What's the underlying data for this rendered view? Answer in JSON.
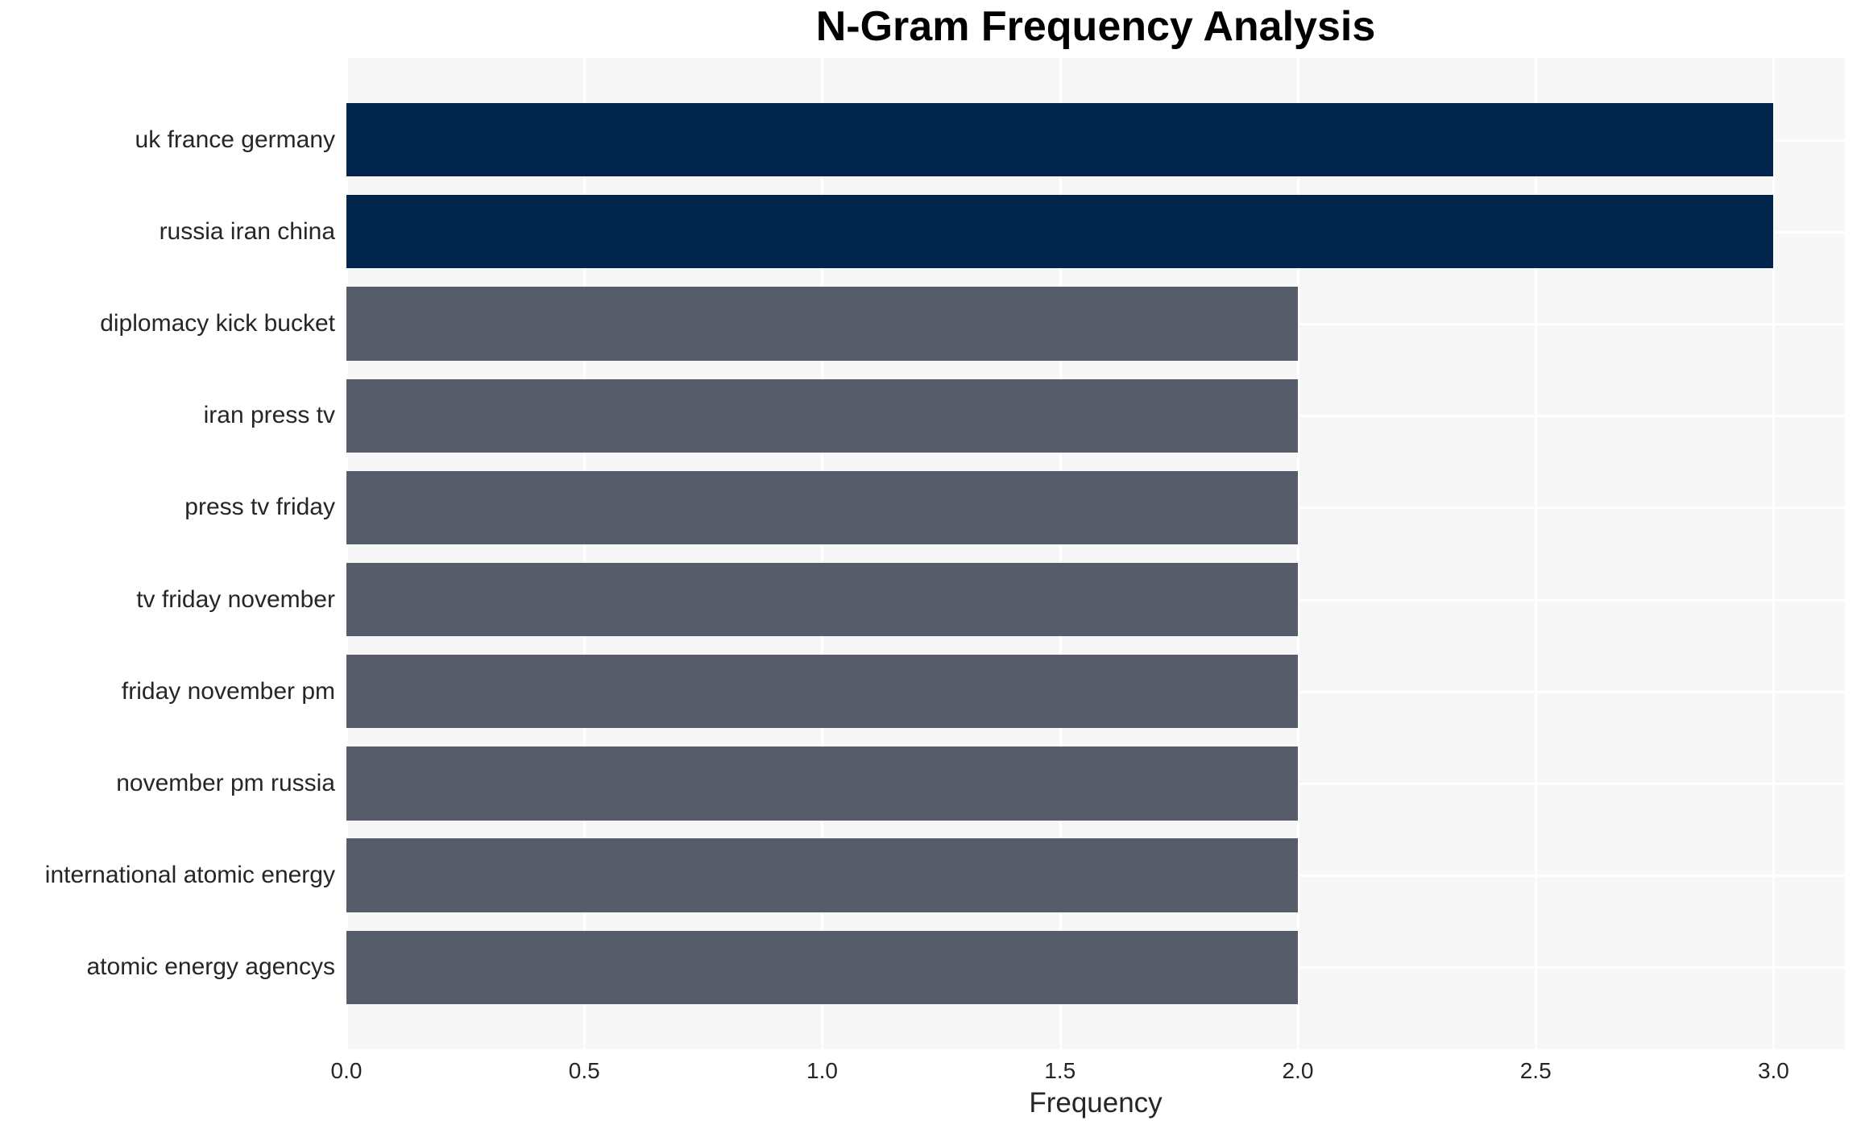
{
  "chart_data": {
    "type": "bar",
    "orientation": "horizontal",
    "title": "N-Gram Frequency Analysis",
    "xlabel": "Frequency",
    "ylabel": "",
    "categories": [
      "uk france germany",
      "russia iran china",
      "diplomacy kick bucket",
      "iran press tv",
      "press tv friday",
      "tv friday november",
      "friday november pm",
      "november pm russia",
      "international atomic energy",
      "atomic energy agencys"
    ],
    "values": [
      3,
      3,
      2,
      2,
      2,
      2,
      2,
      2,
      2,
      2
    ],
    "bar_colors": [
      "#02254d",
      "#02254d",
      "#565c6a",
      "#565c6a",
      "#565c6a",
      "#565c6a",
      "#565c6a",
      "#565c6a",
      "#565c6a",
      "#565c6a"
    ],
    "xticks": [
      "0.0",
      "0.5",
      "1.0",
      "1.5",
      "2.0",
      "2.5",
      "3.0"
    ],
    "xtick_values": [
      0,
      0.5,
      1.0,
      1.5,
      2.0,
      2.5,
      3.0
    ],
    "xlim": [
      0,
      3.15
    ],
    "grid": true,
    "legend": "none",
    "colors": {
      "highlight_bar": "#02254d",
      "default_bar": "#565c6a",
      "plot_background": "#f7f7f7",
      "gridline": "#ffffff",
      "figure_background": "#ffffff",
      "text": "#262626",
      "title_text": "#000000"
    },
    "layout": {
      "bar_height_units": 0.8,
      "y_units_total": 10.78,
      "y_axis_start_offset_units": 0.89
    }
  }
}
